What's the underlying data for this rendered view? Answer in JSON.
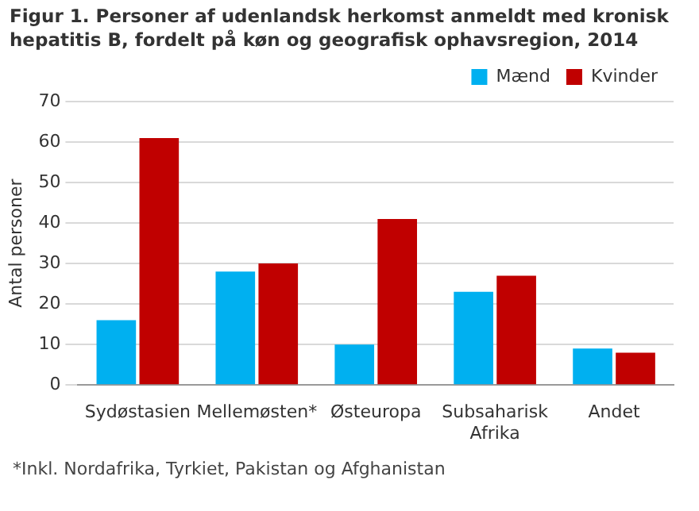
{
  "chart_data": {
    "type": "bar",
    "title": "Figur 1. Personer af udenlandsk herkomst anmeldt med kronisk hepatitis B, fordelt på køn og geografisk ophavsregion, 2014",
    "ylabel": "Antal personer",
    "categories": [
      "Sydøstasien",
      "Mellemøsten*",
      "Østeuropa",
      "Subsaharisk Afrika",
      "Andet"
    ],
    "series": [
      {
        "name": "Mænd",
        "color": "#00b0f0",
        "values": [
          16,
          28,
          10,
          23,
          9
        ]
      },
      {
        "name": "Kvinder",
        "color": "#c00000",
        "values": [
          61,
          30,
          41,
          27,
          8
        ]
      }
    ],
    "ylim": [
      0,
      70
    ],
    "yticks": [
      0,
      10,
      20,
      30,
      40,
      50,
      60,
      70
    ],
    "grid": "y",
    "legend": "top right",
    "annotations": [
      "*Inkl. Nordafrika, Tyrkiet, Pakistan og Afghanistan"
    ]
  }
}
